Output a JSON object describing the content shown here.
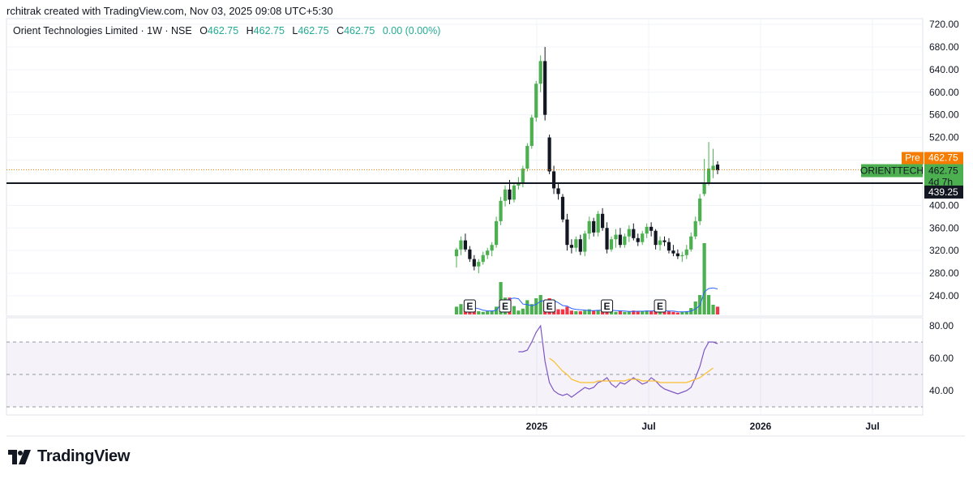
{
  "header": {
    "created_by": "rchitrak created with TradingView.com, Nov 03, 2025 09:08 UTC+5:30"
  },
  "legend": {
    "symbol": "Orient Technologies Limited · 1W · NSE",
    "open_label": "O",
    "open": "462.75",
    "high_label": "H",
    "high": "462.75",
    "low_label": "L",
    "low": "462.75",
    "close_label": "C",
    "close": "462.75",
    "change": "0.00 (0.00%)"
  },
  "price_labels": {
    "pre_tag": "Pre",
    "pre_value": "462.75",
    "ticker_tag": "ORIENTTECH",
    "last_value": "462.75",
    "countdown": "4d 7h",
    "line_value": "439.25"
  },
  "earnings_marker": "E",
  "brand": {
    "name": "TradingView"
  },
  "colors": {
    "up": "#22ab94",
    "up_light": "#4caf50",
    "down": "#131722",
    "vol_up": "#4caf50",
    "vol_down": "#f23645",
    "pre": "#f57c00",
    "rsi": "#7e57c2",
    "rsi_ma": "#fbc02d",
    "vol_ma": "#2962ff"
  },
  "chart_data": [
    {
      "type": "candlestick",
      "title": "Orient Technologies Limited · 1W · NSE",
      "ylim": [
        200,
        720
      ],
      "y_ticks": [
        "720.00",
        "680.00",
        "640.00",
        "600.00",
        "560.00",
        "520.00",
        "480.00",
        "440.00",
        "400.00",
        "360.00",
        "320.00",
        "280.00",
        "240.00"
      ],
      "x_ticks": [
        "2025",
        "Jul",
        "2026",
        "Jul"
      ],
      "horizontal_line": 439.25,
      "last_price": 462.75,
      "candles": [
        [
          310,
          325,
          290,
          322
        ],
        [
          322,
          345,
          312,
          338
        ],
        [
          338,
          350,
          318,
          322
        ],
        [
          322,
          328,
          300,
          305
        ],
        [
          305,
          312,
          285,
          292
        ],
        [
          292,
          305,
          280,
          300
        ],
        [
          300,
          318,
          295,
          312
        ],
        [
          312,
          325,
          305,
          320
        ],
        [
          320,
          335,
          310,
          330
        ],
        [
          330,
          380,
          325,
          372
        ],
        [
          372,
          415,
          365,
          408
        ],
        [
          408,
          435,
          398,
          428
        ],
        [
          428,
          445,
          402,
          410
        ],
        [
          410,
          440,
          405,
          435
        ],
        [
          435,
          450,
          428,
          440
        ],
        [
          440,
          470,
          432,
          465
        ],
        [
          465,
          510,
          460,
          505
        ],
        [
          505,
          560,
          500,
          555
        ],
        [
          555,
          620,
          548,
          615
        ],
        [
          615,
          665,
          600,
          655
        ],
        [
          655,
          680,
          550,
          560
        ],
        [
          520,
          525,
          455,
          460
        ],
        [
          460,
          470,
          420,
          430
        ],
        [
          430,
          440,
          410,
          420
        ],
        [
          415,
          420,
          370,
          375
        ],
        [
          375,
          385,
          320,
          330
        ],
        [
          330,
          340,
          315,
          325
        ],
        [
          325,
          345,
          318,
          340
        ],
        [
          340,
          348,
          312,
          318
        ],
        [
          318,
          355,
          310,
          350
        ],
        [
          350,
          380,
          340,
          372
        ],
        [
          372,
          378,
          345,
          352
        ],
        [
          352,
          390,
          345,
          385
        ],
        [
          385,
          395,
          355,
          360
        ],
        [
          360,
          370,
          315,
          322
        ],
        [
          322,
          345,
          318,
          340
        ],
        [
          340,
          358,
          325,
          348
        ],
        [
          348,
          360,
          325,
          330
        ],
        [
          330,
          350,
          325,
          345
        ],
        [
          345,
          365,
          335,
          358
        ],
        [
          358,
          368,
          338,
          342
        ],
        [
          342,
          350,
          328,
          335
        ],
        [
          335,
          355,
          330,
          350
        ],
        [
          350,
          368,
          342,
          362
        ],
        [
          362,
          370,
          345,
          355
        ],
        [
          355,
          358,
          322,
          330
        ],
        [
          330,
          345,
          320,
          338
        ],
        [
          338,
          345,
          328,
          335
        ],
        [
          335,
          342,
          315,
          320
        ],
        [
          320,
          330,
          310,
          315
        ],
        [
          315,
          322,
          305,
          310
        ],
        [
          310,
          318,
          300,
          312
        ],
        [
          312,
          330,
          305,
          322
        ],
        [
          322,
          352,
          318,
          345
        ],
        [
          345,
          380,
          340,
          372
        ],
        [
          372,
          420,
          365,
          412
        ],
        [
          420,
          482,
          416,
          440
        ],
        [
          440,
          512,
          435,
          465
        ],
        [
          462,
          500,
          448,
          470
        ],
        [
          472,
          478,
          455,
          462
        ]
      ],
      "volume": [
        {
          "v": 1.2,
          "up": true
        },
        {
          "v": 1.6,
          "up": true
        },
        {
          "v": 1.0,
          "up": false
        },
        {
          "v": 0.8,
          "up": false
        },
        {
          "v": 0.6,
          "up": false
        },
        {
          "v": 0.5,
          "up": true
        },
        {
          "v": 0.4,
          "up": true
        },
        {
          "v": 0.5,
          "up": true
        },
        {
          "v": 0.6,
          "up": true
        },
        {
          "v": 1.2,
          "up": true
        },
        {
          "v": 5.0,
          "up": true
        },
        {
          "v": 2.6,
          "up": true
        },
        {
          "v": 2.6,
          "up": false
        },
        {
          "v": 1.3,
          "up": true
        },
        {
          "v": 0.6,
          "up": true
        },
        {
          "v": 0.9,
          "up": true
        },
        {
          "v": 2.2,
          "up": true
        },
        {
          "v": 1.6,
          "up": true
        },
        {
          "v": 2.5,
          "up": true
        },
        {
          "v": 3.0,
          "up": true
        },
        {
          "v": 1.6,
          "up": false
        },
        {
          "v": 2.5,
          "up": false
        },
        {
          "v": 1.2,
          "up": false
        },
        {
          "v": 0.8,
          "up": false
        },
        {
          "v": 0.8,
          "up": false
        },
        {
          "v": 1.2,
          "up": false
        },
        {
          "v": 0.6,
          "up": false
        },
        {
          "v": 0.5,
          "up": true
        },
        {
          "v": 0.5,
          "up": false
        },
        {
          "v": 0.6,
          "up": true
        },
        {
          "v": 0.8,
          "up": true
        },
        {
          "v": 0.6,
          "up": false
        },
        {
          "v": 0.7,
          "up": true
        },
        {
          "v": 0.6,
          "up": false
        },
        {
          "v": 0.8,
          "up": false
        },
        {
          "v": 0.5,
          "up": true
        },
        {
          "v": 0.4,
          "up": true
        },
        {
          "v": 0.5,
          "up": false
        },
        {
          "v": 0.4,
          "up": true
        },
        {
          "v": 0.5,
          "up": true
        },
        {
          "v": 0.6,
          "up": false
        },
        {
          "v": 0.5,
          "up": false
        },
        {
          "v": 0.5,
          "up": true
        },
        {
          "v": 0.6,
          "up": true
        },
        {
          "v": 0.5,
          "up": false
        },
        {
          "v": 0.8,
          "up": false
        },
        {
          "v": 0.5,
          "up": true
        },
        {
          "v": 0.4,
          "up": false
        },
        {
          "v": 0.5,
          "up": false
        },
        {
          "v": 0.4,
          "up": false
        },
        {
          "v": 0.3,
          "up": false
        },
        {
          "v": 0.4,
          "up": true
        },
        {
          "v": 0.5,
          "up": true
        },
        {
          "v": 1.0,
          "up": true
        },
        {
          "v": 2.0,
          "up": true
        },
        {
          "v": 3.0,
          "up": true
        },
        {
          "v": 11.0,
          "up": true
        },
        {
          "v": 3.0,
          "up": true
        },
        {
          "v": 1.5,
          "up": true
        },
        {
          "v": 1.2,
          "up": false
        }
      ],
      "earnings_at": [
        3,
        11,
        21,
        34,
        46
      ]
    },
    {
      "type": "line",
      "title": "RSI",
      "ylim": [
        25,
        85
      ],
      "y_ticks": [
        "80.00",
        "60.00",
        "40.00"
      ],
      "bands": [
        70,
        50,
        30
      ],
      "rsi": [
        null,
        null,
        null,
        null,
        null,
        null,
        null,
        null,
        null,
        null,
        null,
        null,
        null,
        null,
        64,
        64,
        65,
        70,
        76,
        80,
        58,
        45,
        40,
        38,
        37,
        38,
        36,
        38,
        40,
        42,
        41,
        42,
        45,
        46,
        48,
        44,
        42,
        45,
        44,
        46,
        48,
        46,
        44,
        45,
        48,
        46,
        43,
        41,
        40,
        39,
        38,
        39,
        40,
        42,
        48,
        55,
        65,
        70,
        70,
        69
      ],
      "rsi_ma": [
        null,
        null,
        null,
        null,
        null,
        null,
        null,
        null,
        null,
        null,
        null,
        null,
        null,
        null,
        null,
        null,
        null,
        null,
        null,
        null,
        null,
        60,
        58,
        55,
        52,
        50,
        47,
        46,
        45,
        45,
        45,
        45,
        46,
        46,
        46,
        46,
        46,
        46,
        46,
        47,
        47,
        47,
        46,
        46,
        46,
        46,
        45,
        45,
        45,
        45,
        45,
        45,
        45,
        46,
        47,
        48,
        50,
        52,
        54,
        null
      ]
    }
  ]
}
